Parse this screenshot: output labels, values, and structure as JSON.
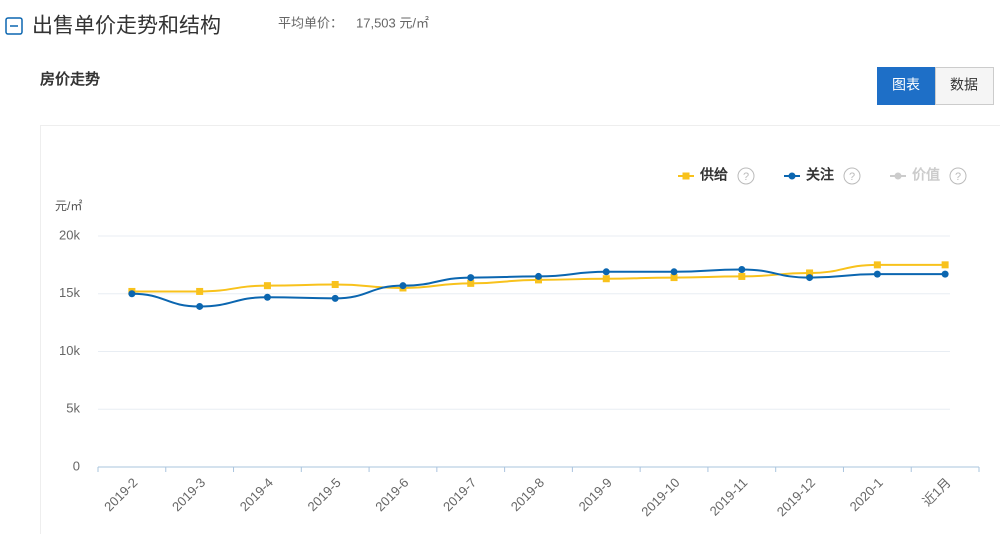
{
  "header": {
    "title": "出售单价走势和结构",
    "avg_label": "平均单价：",
    "avg_value": "17,503 元/㎡"
  },
  "section_title": "房价走势",
  "view_buttons": [
    "图表",
    "数据"
  ],
  "legend_help": "?",
  "chart_data": {
    "type": "line",
    "y_unit": "元/㎡",
    "categories": [
      "2019-2",
      "2019-3",
      "2019-4",
      "2019-5",
      "2019-6",
      "2019-7",
      "2019-8",
      "2019-9",
      "2019-10",
      "2019-11",
      "2019-12",
      "2020-1",
      "近1月"
    ],
    "series": [
      {
        "name": "供给",
        "color": "#f8c21c",
        "marker": "square",
        "values": [
          15200,
          15200,
          15700,
          15800,
          15500,
          15900,
          16200,
          16300,
          16400,
          16500,
          16800,
          17500,
          17503
        ]
      },
      {
        "name": "关注",
        "color": "#0b66b0",
        "marker": "circle",
        "values": [
          15000,
          13900,
          14700,
          14600,
          15700,
          16400,
          16500,
          16900,
          16900,
          17100,
          16400,
          16700,
          16700
        ]
      },
      {
        "name": "价值",
        "color": "#cccccc",
        "marker": "circle",
        "visible": false
      }
    ],
    "ylim": [
      0,
      20000
    ],
    "yticks": [
      0,
      {
        "value": 5000,
        "label": "5k"
      },
      {
        "value": 10000,
        "label": "10k"
      },
      {
        "value": 15000,
        "label": "15k"
      },
      {
        "value": 20000,
        "label": "20k"
      }
    ],
    "grid": true
  }
}
